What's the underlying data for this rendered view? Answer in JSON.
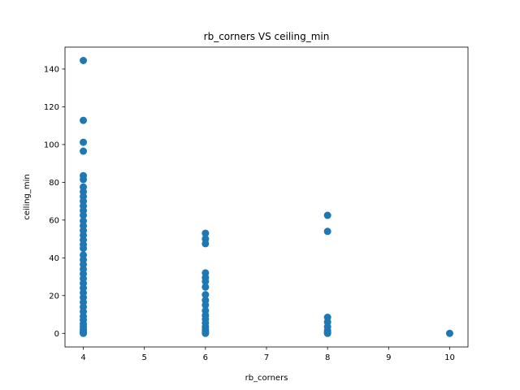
{
  "chart_data": {
    "type": "scatter",
    "title": "rb_corners VS ceiling_min",
    "xlabel": "rb_corners",
    "ylabel": "ceiling_min",
    "xlim": [
      3.7,
      10.3
    ],
    "ylim": [
      -7.2,
      151.6
    ],
    "xticks": [
      4,
      5,
      6,
      7,
      8,
      9,
      10
    ],
    "yticks": [
      0,
      20,
      40,
      60,
      80,
      100,
      120,
      140
    ],
    "grid": false,
    "marker_color": "#1f77b4",
    "series": [
      {
        "points": [
          [
            4,
            144.5
          ],
          [
            4,
            112.8
          ],
          [
            4,
            101.2
          ],
          [
            4,
            96.5
          ],
          [
            4,
            83.5
          ],
          [
            4,
            81.5
          ],
          [
            4,
            77.5
          ],
          [
            4,
            75.0
          ],
          [
            4,
            72.5
          ],
          [
            4,
            70.0
          ],
          [
            4,
            67.5
          ],
          [
            4,
            65.0
          ],
          [
            4,
            62.5
          ],
          [
            4,
            59.5
          ],
          [
            4,
            57.0
          ],
          [
            4,
            54.5
          ],
          [
            4,
            52.0
          ],
          [
            4,
            49.5
          ],
          [
            4,
            47.0
          ],
          [
            4,
            45.0
          ],
          [
            4,
            41.5
          ],
          [
            4,
            39.0
          ],
          [
            4,
            36.5
          ],
          [
            4,
            34.0
          ],
          [
            4,
            31.5
          ],
          [
            4,
            29.0
          ],
          [
            4,
            26.5
          ],
          [
            4,
            24.0
          ],
          [
            4,
            21.5
          ],
          [
            4,
            19.0
          ],
          [
            4,
            16.5
          ],
          [
            4,
            14.0
          ],
          [
            4,
            11.5
          ],
          [
            4,
            9.0
          ],
          [
            4,
            7.0
          ],
          [
            4,
            5.0
          ],
          [
            4,
            3.5
          ],
          [
            4,
            2.0
          ],
          [
            4,
            1.0
          ],
          [
            4,
            0.3
          ],
          [
            4,
            0.0
          ],
          [
            6,
            53.0
          ],
          [
            6,
            50.0
          ],
          [
            6,
            47.5
          ],
          [
            6,
            32.0
          ],
          [
            6,
            29.5
          ],
          [
            6,
            27.5
          ],
          [
            6,
            24.5
          ],
          [
            6,
            20.5
          ],
          [
            6,
            17.5
          ],
          [
            6,
            15.0
          ],
          [
            6,
            12.0
          ],
          [
            6,
            9.5
          ],
          [
            6,
            7.5
          ],
          [
            6,
            5.5
          ],
          [
            6,
            3.5
          ],
          [
            6,
            2.0
          ],
          [
            6,
            1.0
          ],
          [
            6,
            0.3
          ],
          [
            6,
            0.0
          ],
          [
            8,
            62.5
          ],
          [
            8,
            54.0
          ],
          [
            8,
            8.5
          ],
          [
            8,
            6.0
          ],
          [
            8,
            3.5
          ],
          [
            8,
            1.5
          ],
          [
            8,
            0.5
          ],
          [
            8,
            0.0
          ],
          [
            10,
            0.0
          ]
        ]
      }
    ]
  }
}
